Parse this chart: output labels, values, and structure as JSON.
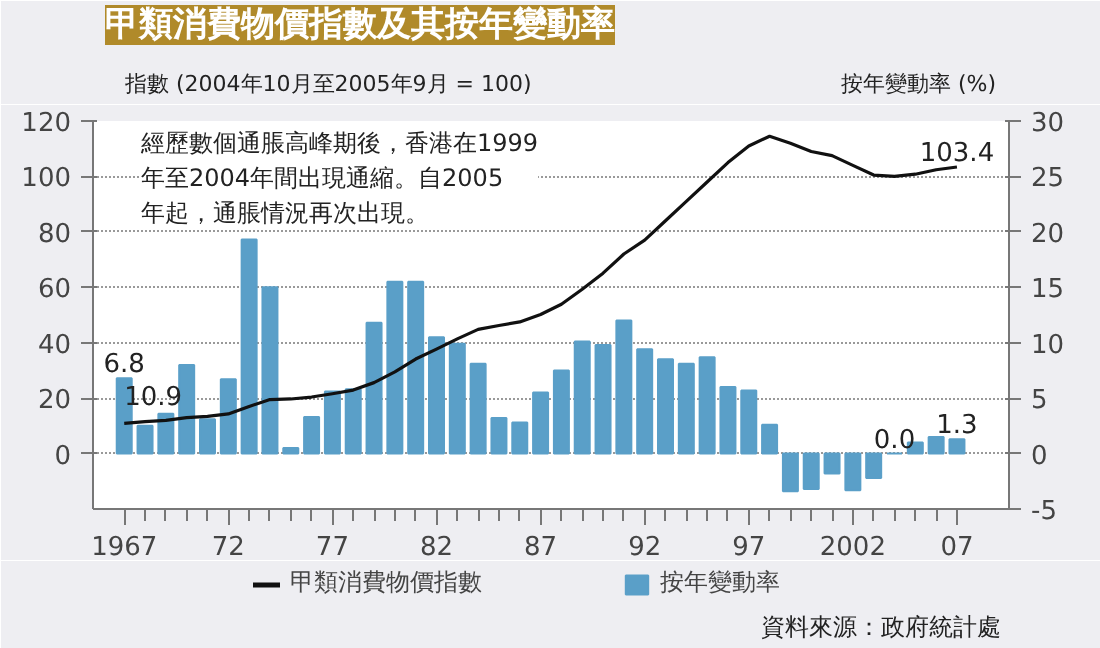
{
  "chart_data": {
    "type": "bar",
    "title": "甲類消費物價指數及其按年變動率",
    "ylabel": "指數 (2004年10月至2005年9月 = 100)",
    "y2label": "按年變動率 (%)",
    "x": [
      1967,
      1968,
      1969,
      1970,
      1971,
      1972,
      1973,
      1974,
      1975,
      1976,
      1977,
      1978,
      1979,
      1980,
      1981,
      1982,
      1983,
      1984,
      1985,
      1986,
      1987,
      1988,
      1989,
      1990,
      1991,
      1992,
      1993,
      1994,
      1995,
      1996,
      1997,
      1998,
      1999,
      2000,
      2001,
      2002,
      2003,
      2004,
      2005,
      2006,
      2007
    ],
    "series": [
      {
        "name": "甲類消費物價指數",
        "type": "line",
        "color": "#111111",
        "values": [
          10.9,
          11.5,
          12.0,
          13.0,
          13.4,
          14.3,
          17.0,
          19.5,
          19.7,
          20.4,
          21.6,
          22.9,
          25.6,
          29.5,
          34.1,
          37.7,
          41.4,
          44.8,
          46.2,
          47.5,
          50.2,
          53.9,
          59.3,
          65.1,
          72.0,
          77.0,
          84.0,
          91.0,
          98.0,
          105.0,
          111.0,
          114.5,
          112.0,
          109.0,
          107.5,
          104.0,
          100.5,
          100.0,
          100.8,
          102.4,
          103.4
        ],
        "value_labels": [
          "10.9",
          null,
          null,
          null,
          null,
          null,
          null,
          null,
          null,
          null,
          null,
          null,
          null,
          null,
          null,
          null,
          null,
          null,
          null,
          null,
          null,
          null,
          null,
          null,
          null,
          null,
          null,
          null,
          null,
          null,
          null,
          null,
          null,
          null,
          null,
          null,
          null,
          null,
          null,
          null,
          "103.4"
        ]
      },
      {
        "name": "按年變動率",
        "axis": "y2",
        "color": "#5a9fc8",
        "values": [
          6.8,
          2.5,
          3.6,
          8.0,
          3.1,
          6.7,
          19.3,
          15.0,
          0.5,
          3.3,
          5.6,
          5.8,
          11.8,
          15.5,
          15.5,
          10.5,
          9.9,
          8.1,
          3.2,
          2.8,
          5.5,
          7.5,
          10.1,
          9.8,
          12.0,
          9.4,
          8.5,
          8.1,
          8.7,
          6.0,
          5.7,
          2.6,
          -3.4,
          -3.2,
          -1.8,
          -3.3,
          -2.2,
          0.0,
          1.0,
          1.5,
          1.3
        ],
        "value_labels": [
          "6.8",
          null,
          null,
          null,
          null,
          null,
          null,
          null,
          null,
          null,
          null,
          null,
          null,
          null,
          null,
          null,
          null,
          null,
          null,
          null,
          null,
          null,
          null,
          null,
          null,
          null,
          null,
          null,
          null,
          null,
          null,
          null,
          null,
          null,
          null,
          null,
          null,
          "0.0",
          null,
          null,
          "1.3"
        ]
      }
    ],
    "xlim": [
      1965.5,
      2009.5
    ],
    "xticks": [
      {
        "value": 1967,
        "label": "1967"
      },
      {
        "value": 1972,
        "label": "72"
      },
      {
        "value": 1977,
        "label": "77"
      },
      {
        "value": 1982,
        "label": "82"
      },
      {
        "value": 1987,
        "label": "87"
      },
      {
        "value": 1992,
        "label": "92"
      },
      {
        "value": 1997,
        "label": "97"
      },
      {
        "value": 2002,
        "label": "2002"
      },
      {
        "value": 2007,
        "label": "07"
      }
    ],
    "ylim": [
      -20,
      120
    ],
    "yticks": [
      0,
      20,
      40,
      60,
      80,
      100,
      120
    ],
    "y2lim": [
      -5,
      30
    ],
    "y2ticks": [
      -5,
      0,
      5,
      10,
      15,
      20,
      25,
      30
    ],
    "grid": "y",
    "legend": "bottom",
    "annotations": [
      "經歷數個通脹高峰期後，香港在1999年至2004年間出現通縮。自2005年起，通脹情況再次出現。",
      "資料來源：政府統計處"
    ]
  }
}
